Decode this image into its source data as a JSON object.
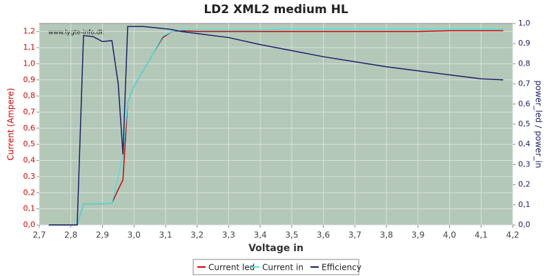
{
  "chart_data": {
    "type": "line",
    "title": "LD2 XML2 medium HL",
    "annotation": "www.lygte-info.dk",
    "x_label": "Voltage in",
    "y_label": "Current (Ampere)",
    "y2_label": "power_led / power_in",
    "x": [
      2.73,
      2.82,
      2.84,
      2.87,
      2.9,
      2.93,
      2.95,
      2.965,
      2.98,
      3.0,
      3.03,
      3.06,
      3.09,
      3.12,
      3.15,
      3.2,
      3.3,
      3.4,
      3.5,
      3.6,
      3.7,
      3.8,
      3.9,
      4.0,
      4.1,
      4.17
    ],
    "series": [
      {
        "name": "Current led",
        "color": "#d40000",
        "values": [
          0,
          0,
          0.13,
          0.13,
          0.13,
          0.135,
          0.22,
          0.28,
          0.76,
          0.86,
          0.96,
          1.06,
          1.16,
          1.2,
          1.205,
          1.2,
          1.2,
          1.2,
          1.2,
          1.2,
          1.2,
          1.2,
          1.2,
          1.205,
          1.205,
          1.205
        ]
      },
      {
        "name": "Current in",
        "color": "#3ee8e8",
        "values": [
          0,
          0,
          0.13,
          0.13,
          0.13,
          0.135,
          0.3,
          0.44,
          0.76,
          0.86,
          0.96,
          1.06,
          1.17,
          1.2,
          1.21,
          1.21,
          1.21,
          1.21,
          1.215,
          1.215,
          1.215,
          1.215,
          1.215,
          1.215,
          1.215,
          1.215
        ]
      },
      {
        "name": "Efficiency",
        "color": "#1c1c6a",
        "axis": "y2",
        "values": [
          0,
          0,
          0.94,
          0.935,
          0.91,
          0.915,
          0.7,
          0.35,
          0.985,
          0.985,
          0.985,
          0.98,
          0.975,
          0.97,
          0.96,
          0.95,
          0.93,
          0.895,
          0.865,
          0.835,
          0.81,
          0.785,
          0.765,
          0.745,
          0.725,
          0.72
        ]
      }
    ],
    "xlim": [
      2.7,
      4.2
    ],
    "xticks": [
      {
        "value": 2.7,
        "label": "2,7"
      },
      {
        "value": 2.8,
        "label": "2,8"
      },
      {
        "value": 2.9,
        "label": "2,9"
      },
      {
        "value": 3.0,
        "label": "3,0"
      },
      {
        "value": 3.1,
        "label": "3,1"
      },
      {
        "value": 3.2,
        "label": "3,2"
      },
      {
        "value": 3.3,
        "label": "3,3"
      },
      {
        "value": 3.4,
        "label": "3,4"
      },
      {
        "value": 3.5,
        "label": "3,5"
      },
      {
        "value": 3.6,
        "label": "3,6"
      },
      {
        "value": 3.7,
        "label": "3,7"
      },
      {
        "value": 3.8,
        "label": "3,8"
      },
      {
        "value": 3.9,
        "label": "3,9"
      },
      {
        "value": 4.0,
        "label": "4,0"
      },
      {
        "value": 4.1,
        "label": "4,1"
      },
      {
        "value": 4.2,
        "label": "4,2"
      }
    ],
    "ylim": [
      0,
      1.25
    ],
    "yticks": [
      {
        "value": 0,
        "label": "0,0"
      },
      {
        "value": 0.1,
        "label": "0,1"
      },
      {
        "value": 0.2,
        "label": "0,2"
      },
      {
        "value": 0.3,
        "label": "0,3"
      },
      {
        "value": 0.4,
        "label": "0,4"
      },
      {
        "value": 0.5,
        "label": "0,5"
      },
      {
        "value": 0.6,
        "label": "0,6"
      },
      {
        "value": 0.7,
        "label": "0,7"
      },
      {
        "value": 0.8,
        "label": "0,8"
      },
      {
        "value": 0.9,
        "label": "0,9"
      },
      {
        "value": 1.0,
        "label": "1,0"
      },
      {
        "value": 1.1,
        "label": "1,1"
      },
      {
        "value": 1.2,
        "label": "1,2"
      }
    ],
    "y2lim": [
      0,
      1
    ],
    "y2ticks": [
      {
        "value": 0,
        "label": "0,0"
      },
      {
        "value": 0.1,
        "label": "0,1"
      },
      {
        "value": 0.2,
        "label": "0,2"
      },
      {
        "value": 0.3,
        "label": "0,3"
      },
      {
        "value": 0.4,
        "label": "0,4"
      },
      {
        "value": 0.5,
        "label": "0,5"
      },
      {
        "value": 0.6,
        "label": "0,6"
      },
      {
        "value": 0.7,
        "label": "0,7"
      },
      {
        "value": 0.8,
        "label": "0,8"
      },
      {
        "value": 0.9,
        "label": "0,9"
      },
      {
        "value": 1.0,
        "label": "1,0"
      }
    ],
    "grid": true,
    "legend": "bottom"
  }
}
